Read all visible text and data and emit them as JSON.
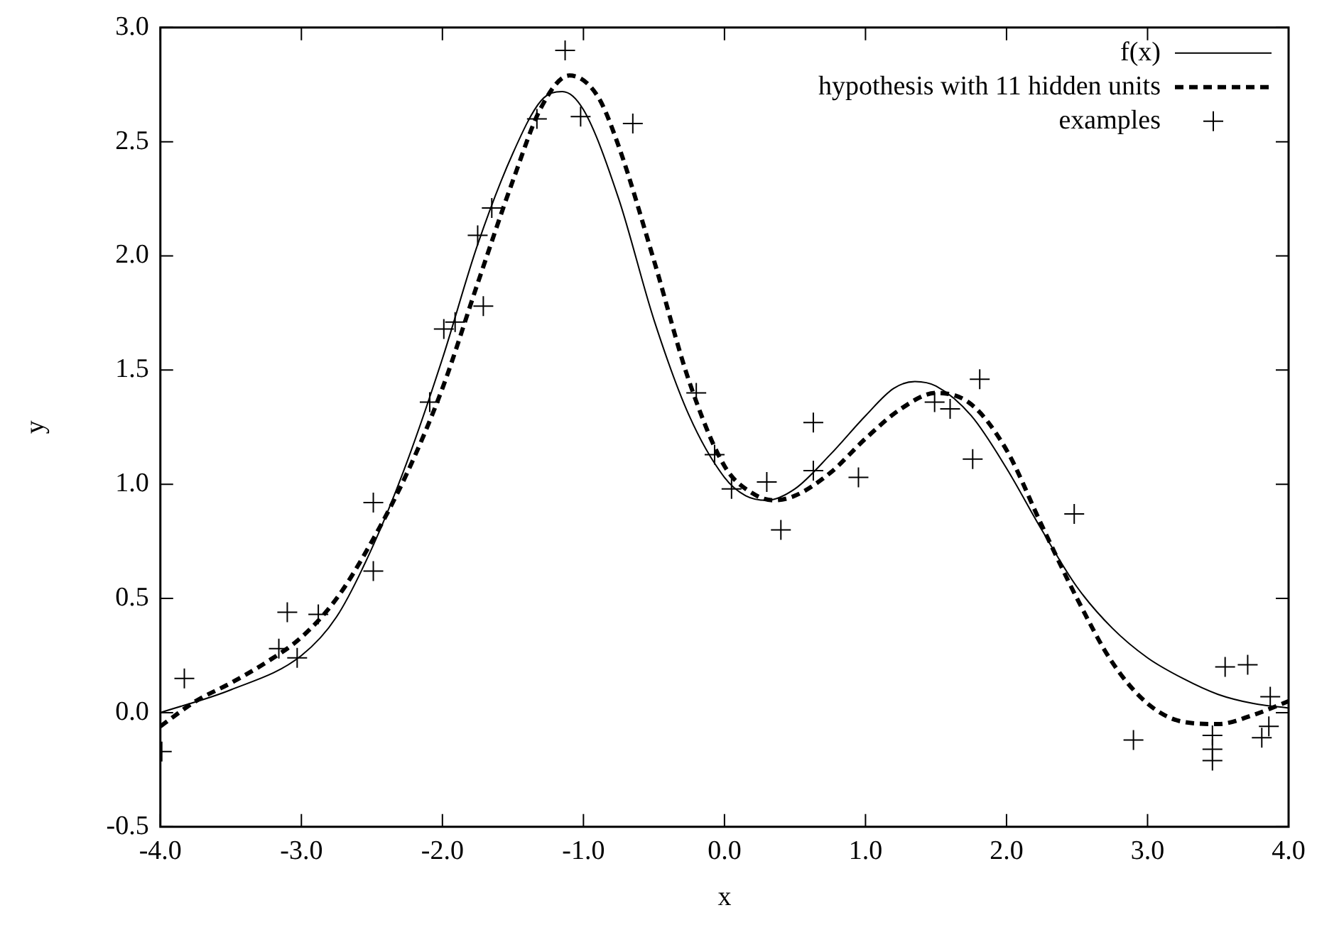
{
  "chart_data": {
    "type": "line",
    "xlabel": "x",
    "ylabel": "y",
    "xlim": [
      -4,
      4
    ],
    "ylim": [
      -0.5,
      3
    ],
    "xticks": [
      {
        "value": -4,
        "label": "-4.0"
      },
      {
        "value": -3,
        "label": "-3.0"
      },
      {
        "value": -2,
        "label": "-2.0"
      },
      {
        "value": -1,
        "label": "-1.0"
      },
      {
        "value": 0,
        "label": "0.0"
      },
      {
        "value": 1,
        "label": "1.0"
      },
      {
        "value": 2,
        "label": "2.0"
      },
      {
        "value": 3,
        "label": "3.0"
      },
      {
        "value": 4,
        "label": "4.0"
      }
    ],
    "yticks": [
      {
        "value": -0.5,
        "label": "-0.5"
      },
      {
        "value": 0,
        "label": "0.0"
      },
      {
        "value": 0.5,
        "label": "0.5"
      },
      {
        "value": 1,
        "label": "1.0"
      },
      {
        "value": 1.5,
        "label": "1.5"
      },
      {
        "value": 2,
        "label": "2.0"
      },
      {
        "value": 2.5,
        "label": "2.5"
      },
      {
        "value": 3,
        "label": "3.0"
      }
    ],
    "grid": false,
    "legend": "top right",
    "series": [
      {
        "name": "f(x)",
        "type": "line",
        "color": "#000000",
        "line_style": "solid",
        "marker": "none",
        "x": [
          -4,
          -3.5,
          -3,
          -2.75,
          -2.5,
          -2.25,
          -2,
          -1.75,
          -1.5,
          -1.3,
          -1.15,
          -1,
          -0.75,
          -0.5,
          -0.25,
          0,
          0.15,
          0.3,
          0.5,
          0.75,
          1,
          1.2,
          1.35,
          1.5,
          1.75,
          2,
          2.25,
          2.5,
          2.75,
          3,
          3.25,
          3.5,
          3.75,
          4
        ],
        "values": [
          0,
          0.1,
          0.25,
          0.42,
          0.72,
          1.1,
          1.55,
          2.05,
          2.45,
          2.68,
          2.72,
          2.64,
          2.25,
          1.72,
          1.3,
          1.03,
          0.95,
          0.93,
          0.98,
          1.13,
          1.3,
          1.42,
          1.45,
          1.43,
          1.3,
          1.07,
          0.8,
          0.55,
          0.37,
          0.24,
          0.15,
          0.08,
          0.04,
          0.02
        ]
      },
      {
        "name": "hypothesis with 11 hidden units",
        "type": "line",
        "color": "#000000",
        "line_style": "dashed",
        "marker": "none",
        "x": [
          -4,
          -3.75,
          -3.5,
          -3.25,
          -3,
          -2.75,
          -2.5,
          -2.25,
          -2,
          -1.75,
          -1.5,
          -1.3,
          -1.1,
          -0.9,
          -0.75,
          -0.5,
          -0.25,
          0,
          0.2,
          0.35,
          0.5,
          0.75,
          1,
          1.25,
          1.5,
          1.75,
          2,
          2.25,
          2.5,
          2.75,
          3,
          3.25,
          3.5,
          3.75,
          4
        ],
        "values": [
          -0.06,
          0.05,
          0.13,
          0.22,
          0.33,
          0.5,
          0.75,
          1.05,
          1.42,
          1.88,
          2.33,
          2.65,
          2.79,
          2.7,
          2.48,
          1.98,
          1.45,
          1.08,
          0.96,
          0.93,
          0.95,
          1.05,
          1.2,
          1.33,
          1.4,
          1.35,
          1.15,
          0.82,
          0.5,
          0.22,
          0.04,
          -0.04,
          -0.05,
          -0.01,
          0.05
        ]
      },
      {
        "name": "examples",
        "type": "scatter",
        "color": "#000000",
        "marker": "cross",
        "x": [
          -3.99,
          -3.83,
          -3.16,
          -3.1,
          -3.03,
          -2.88,
          -2.49,
          -2.49,
          -2.09,
          -1.99,
          -1.91,
          -1.75,
          -1.71,
          -1.65,
          -1.33,
          -1.13,
          -1.02,
          -0.65,
          -0.2,
          -0.07,
          0.05,
          0.3,
          0.4,
          0.63,
          0.63,
          0.95,
          1.49,
          1.6,
          1.76,
          1.81,
          2.48,
          2.9,
          3.46,
          3.46,
          3.46,
          3.55,
          3.71,
          3.81,
          3.86,
          3.87
        ],
        "values": [
          -0.17,
          0.15,
          0.28,
          0.44,
          0.24,
          0.43,
          0.92,
          0.62,
          1.36,
          1.68,
          1.71,
          2.09,
          1.78,
          2.21,
          2.6,
          2.9,
          2.61,
          2.58,
          1.4,
          1.13,
          0.98,
          1.01,
          0.8,
          1.27,
          1.06,
          1.03,
          1.36,
          1.33,
          1.11,
          1.46,
          0.87,
          -0.12,
          -0.1,
          -0.16,
          -0.21,
          0.2,
          0.21,
          -0.11,
          -0.06,
          0.07
        ]
      }
    ]
  }
}
